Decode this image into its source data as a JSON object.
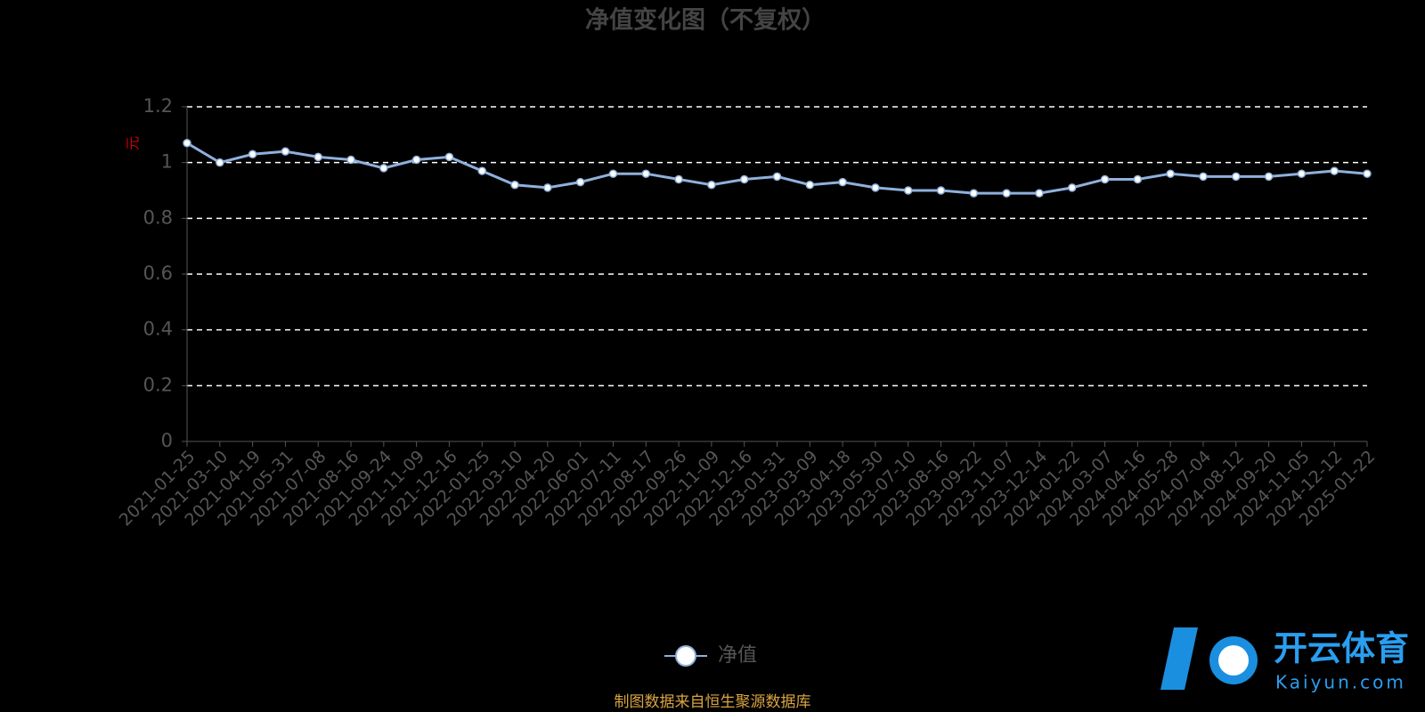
{
  "chart_data": {
    "type": "line",
    "title": "净值变化图（不复权）",
    "y_label": "元",
    "categories": [
      "2021-01-25",
      "2021-03-10",
      "2021-04-19",
      "2021-05-31",
      "2021-07-08",
      "2021-08-16",
      "2021-09-24",
      "2021-11-09",
      "2021-12-16",
      "2022-01-25",
      "2022-03-10",
      "2022-04-20",
      "2022-06-01",
      "2022-07-11",
      "2022-08-17",
      "2022-09-26",
      "2022-11-09",
      "2022-12-16",
      "2023-01-31",
      "2023-03-09",
      "2023-04-18",
      "2023-05-30",
      "2023-07-10",
      "2023-08-16",
      "2023-09-22",
      "2023-11-07",
      "2023-12-14",
      "2024-01-22",
      "2024-03-07",
      "2024-04-16",
      "2024-05-28",
      "2024-07-04",
      "2024-08-12",
      "2024-09-20",
      "2024-11-05",
      "2024-12-12",
      "2025-01-22"
    ],
    "series": [
      {
        "name": "净值",
        "color": "#8fb0dc",
        "values": [
          1.07,
          1.0,
          1.03,
          1.04,
          1.02,
          1.01,
          0.98,
          1.01,
          1.02,
          0.97,
          0.92,
          0.91,
          0.93,
          0.96,
          0.96,
          0.94,
          0.92,
          0.94,
          0.95,
          0.92,
          0.93,
          0.91,
          0.9,
          0.9,
          0.89,
          0.89,
          0.89,
          0.91,
          0.94,
          0.94,
          0.96,
          0.95,
          0.95,
          0.95,
          0.96,
          0.97,
          0.96
        ]
      }
    ],
    "ylim": [
      0,
      1.2
    ],
    "yticks": [
      0,
      0.2,
      0.4,
      0.6,
      0.8,
      1,
      1.2
    ],
    "grid": true,
    "source": "制图数据来自恒生聚源数据库",
    "watermark": {
      "brand": "开云体育",
      "site": "Kaiyun.com"
    }
  }
}
